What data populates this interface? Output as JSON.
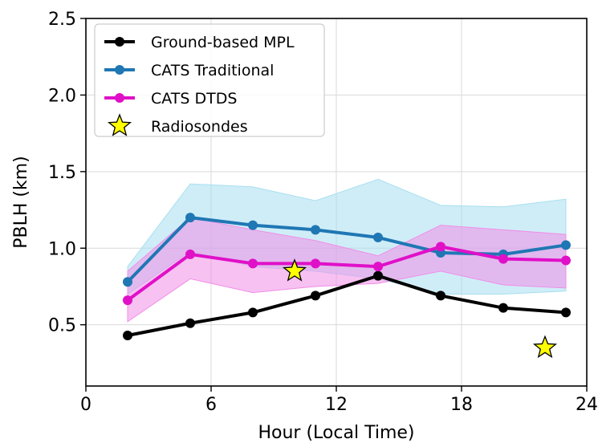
{
  "chart_data": {
    "type": "line",
    "xlabel": "Hour (Local Time)",
    "ylabel": "PBLH (km)",
    "xlim": [
      0,
      24
    ],
    "ylim": [
      0.1,
      2.5
    ],
    "xticks": [
      0,
      6,
      12,
      18,
      24
    ],
    "xtick_labels": [
      "0",
      "6",
      "12",
      "18",
      "24"
    ],
    "yticks": [
      0.5,
      1.0,
      1.5,
      2.0,
      2.5
    ],
    "ytick_labels": [
      "0.5",
      "1.0",
      "1.5",
      "2.0",
      "2.5"
    ],
    "grid": true,
    "legend_position": "top-left",
    "series": [
      {
        "name": "Ground-based MPL",
        "color": "#000000",
        "marker": "circle",
        "x": [
          2,
          5,
          8,
          11,
          14,
          17,
          20,
          23
        ],
        "values": [
          0.43,
          0.51,
          0.58,
          0.69,
          0.82,
          0.69,
          0.61,
          0.58
        ]
      },
      {
        "name": "CATS Traditional",
        "color": "#1f77b4",
        "band_color": "#a8dff0",
        "marker": "circle",
        "x": [
          2,
          5,
          8,
          11,
          14,
          17,
          20,
          23
        ],
        "values": [
          0.78,
          1.2,
          1.15,
          1.12,
          1.07,
          0.97,
          0.96,
          1.02
        ],
        "lower": [
          0.7,
          0.98,
          0.88,
          0.85,
          0.8,
          0.7,
          0.7,
          0.72
        ],
        "upper": [
          0.88,
          1.42,
          1.4,
          1.31,
          1.45,
          1.28,
          1.27,
          1.32
        ]
      },
      {
        "name": "CATS DTDS",
        "color": "#e010c8",
        "band_color": "#f08ee8",
        "marker": "circle",
        "x": [
          2,
          5,
          8,
          11,
          14,
          17,
          20,
          23
        ],
        "values": [
          0.66,
          0.96,
          0.9,
          0.9,
          0.88,
          1.01,
          0.93,
          0.92
        ],
        "lower": [
          0.52,
          0.8,
          0.71,
          0.75,
          0.77,
          0.85,
          0.76,
          0.74
        ],
        "upper": [
          0.85,
          1.2,
          1.12,
          1.05,
          0.95,
          1.15,
          1.12,
          1.09
        ]
      }
    ],
    "scatter": {
      "name": "Radiosondes",
      "marker": "star",
      "color": "#ffff00",
      "points": [
        {
          "x": 10,
          "y": 0.85
        },
        {
          "x": 22,
          "y": 0.35
        }
      ]
    }
  }
}
